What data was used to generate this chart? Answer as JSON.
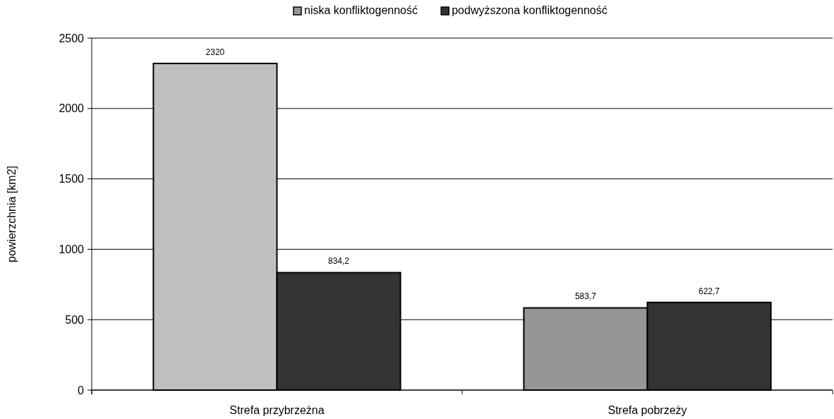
{
  "chart_data": {
    "type": "bar",
    "ylabel": "powierzchnia [km2]",
    "categories": [
      "Strefa przybrzeżna",
      "Strefa pobrzeży"
    ],
    "series": [
      {
        "name": "niska konfliktogenność",
        "color": "#969696",
        "colors": [
          "#c0c0c0",
          "#969696"
        ],
        "values": [
          2320,
          583.7
        ],
        "value_labels": [
          "2320",
          "583,7"
        ]
      },
      {
        "name": "podwyższona konfliktogenność",
        "color": "#333333",
        "values": [
          834.2,
          622.7
        ],
        "value_labels": [
          "834,2",
          "622,7"
        ]
      }
    ],
    "ylim": [
      0,
      2500
    ],
    "yticks": [
      0,
      500,
      1000,
      1500,
      2000,
      2500
    ],
    "grid": "y",
    "legend": "top"
  }
}
